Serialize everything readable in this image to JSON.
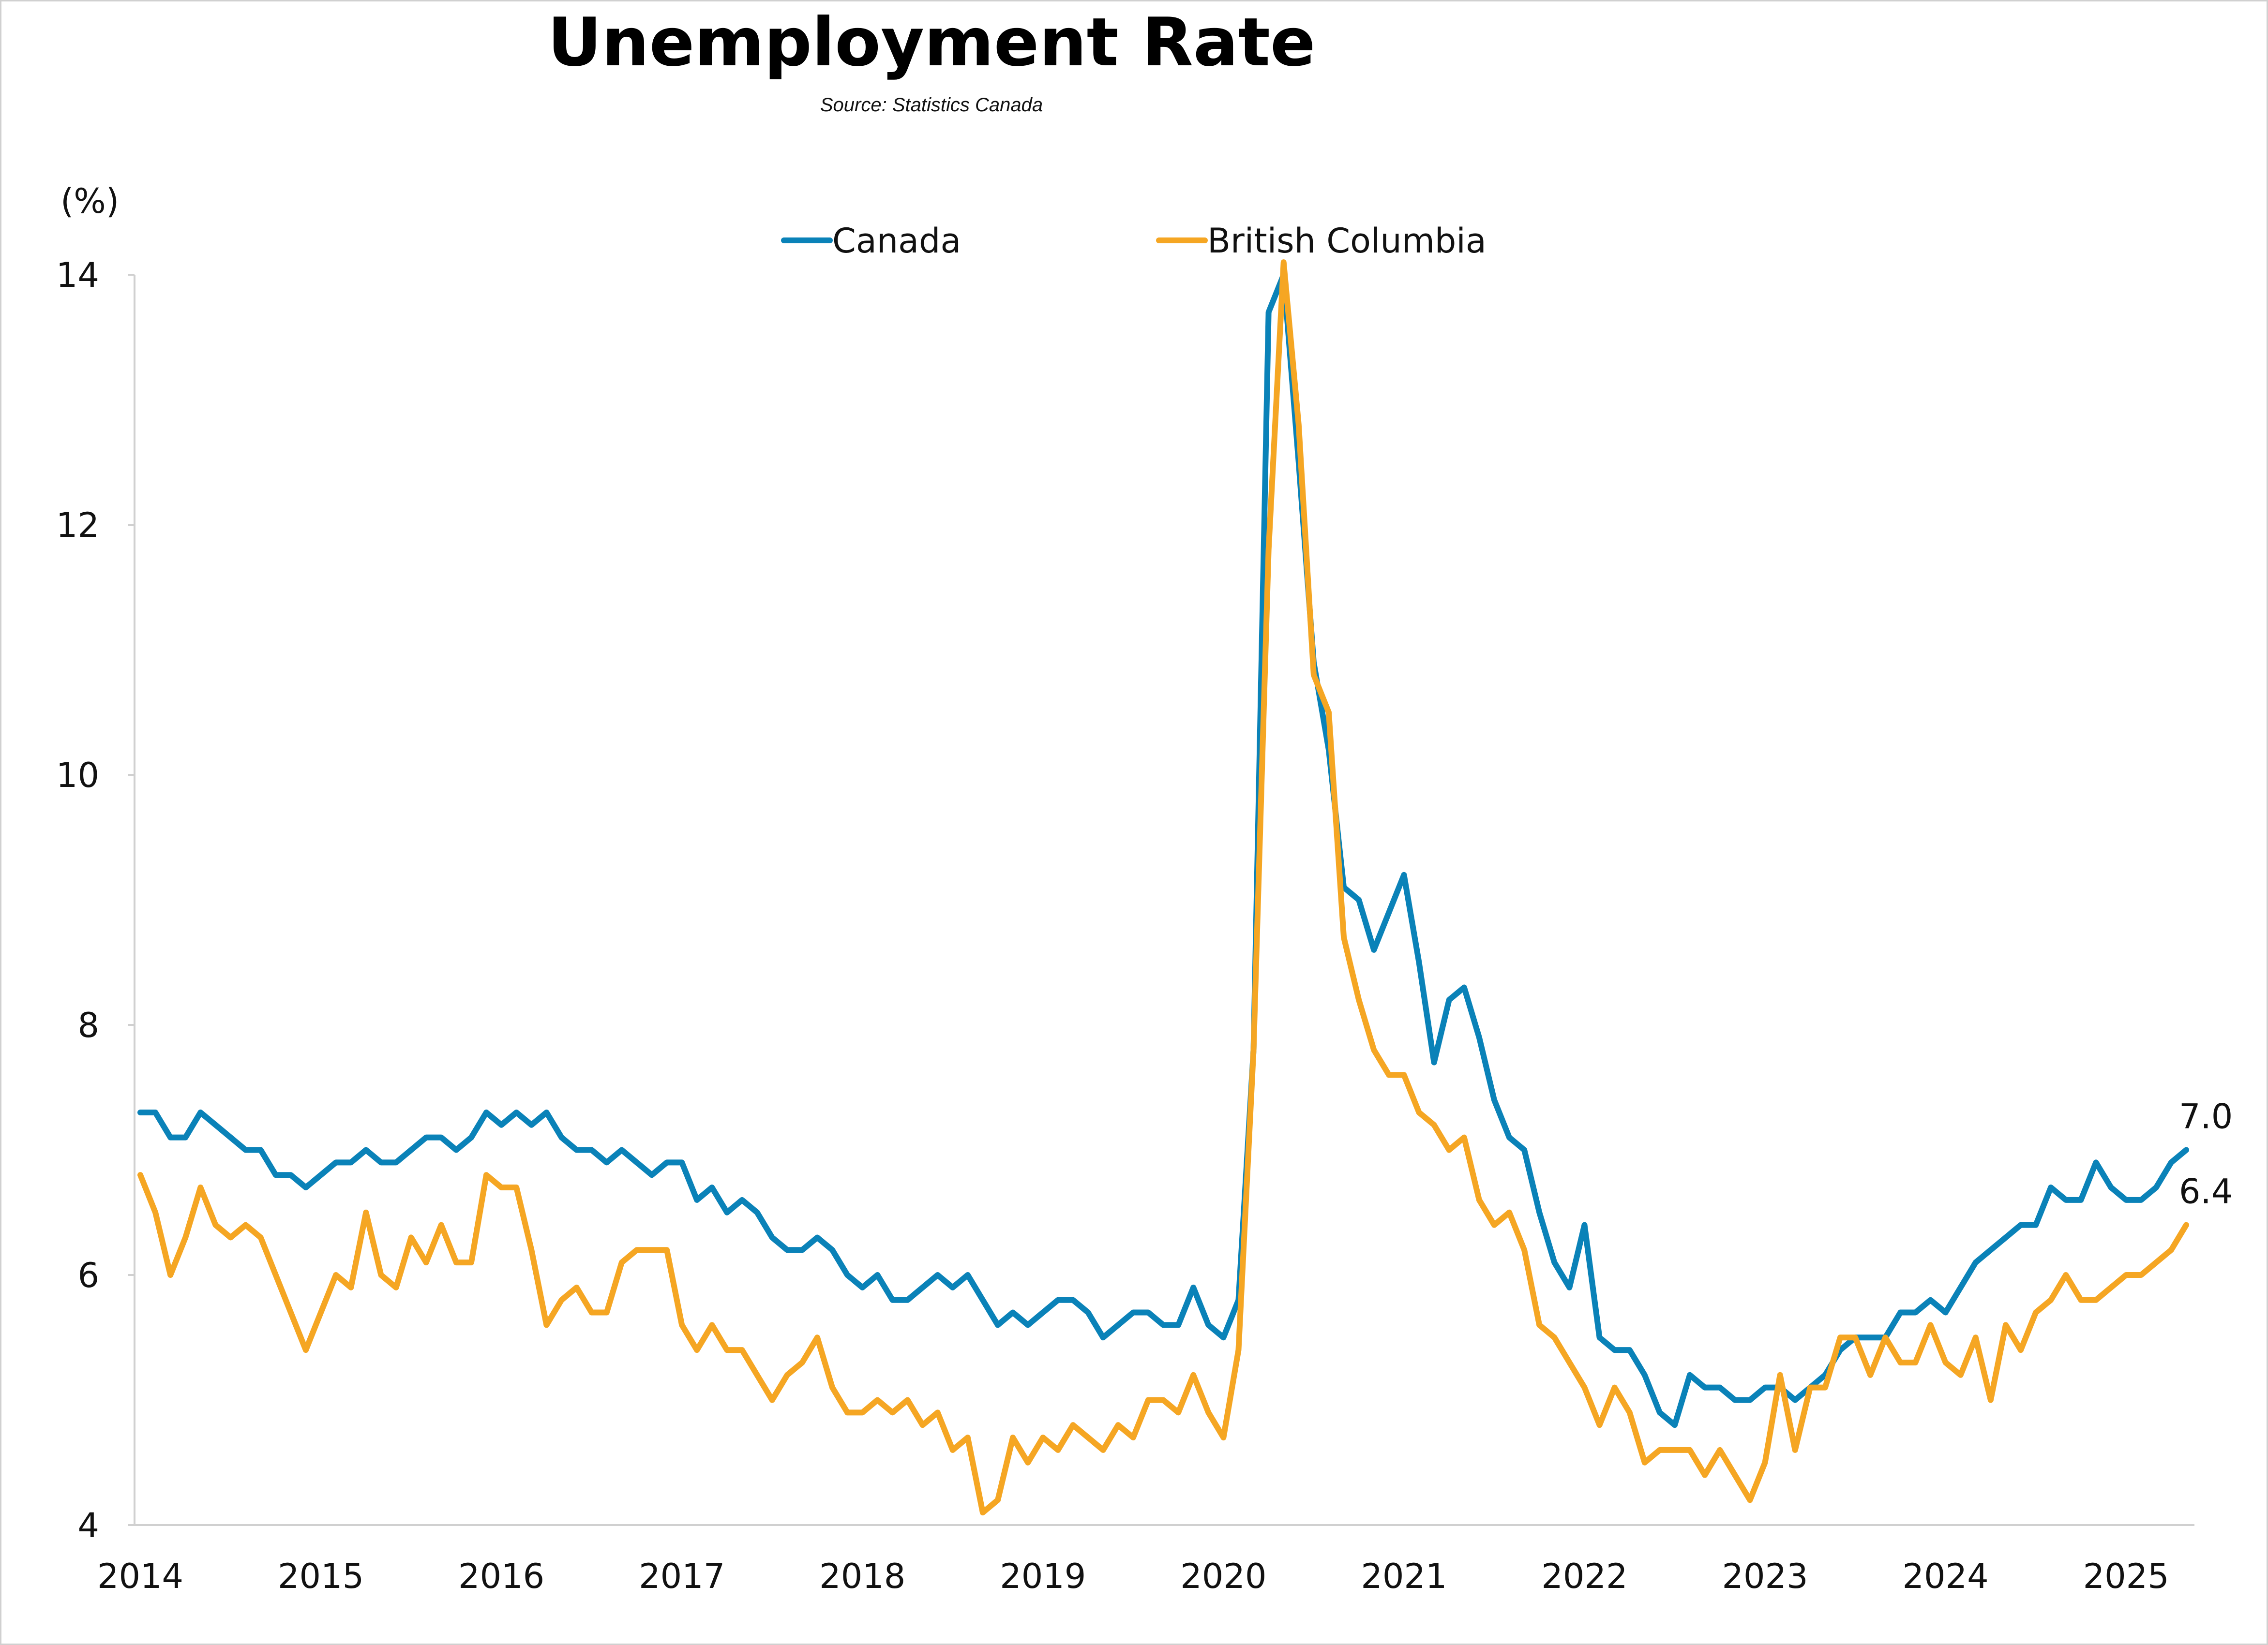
{
  "chart_data": {
    "type": "line",
    "title": "Unemployment Rate",
    "subtitle": "Source: Statistics Canada",
    "ylabel": "(%)",
    "xlabel": "",
    "ylim": [
      4,
      14
    ],
    "xlim": [
      "2014-01",
      "2025-05"
    ],
    "yticks": [
      "4",
      "6",
      "8",
      "10",
      "12",
      "14"
    ],
    "xticks": [
      "2014",
      "2015",
      "2016",
      "2017",
      "2018",
      "2019",
      "2020",
      "2021",
      "2022",
      "2023",
      "2024",
      "2025"
    ],
    "legend_position": "top-center",
    "grid": false,
    "x": [
      "2014-01",
      "2014-02",
      "2014-03",
      "2014-04",
      "2014-05",
      "2014-06",
      "2014-07",
      "2014-08",
      "2014-09",
      "2014-10",
      "2014-11",
      "2014-12",
      "2015-01",
      "2015-02",
      "2015-03",
      "2015-04",
      "2015-05",
      "2015-06",
      "2015-07",
      "2015-08",
      "2015-09",
      "2015-10",
      "2015-11",
      "2015-12",
      "2016-01",
      "2016-02",
      "2016-03",
      "2016-04",
      "2016-05",
      "2016-06",
      "2016-07",
      "2016-08",
      "2016-09",
      "2016-10",
      "2016-11",
      "2016-12",
      "2017-01",
      "2017-02",
      "2017-03",
      "2017-04",
      "2017-05",
      "2017-06",
      "2017-07",
      "2017-08",
      "2017-09",
      "2017-10",
      "2017-11",
      "2017-12",
      "2018-01",
      "2018-02",
      "2018-03",
      "2018-04",
      "2018-05",
      "2018-06",
      "2018-07",
      "2018-08",
      "2018-09",
      "2018-10",
      "2018-11",
      "2018-12",
      "2019-01",
      "2019-02",
      "2019-03",
      "2019-04",
      "2019-05",
      "2019-06",
      "2019-07",
      "2019-08",
      "2019-09",
      "2019-10",
      "2019-11",
      "2019-12",
      "2020-01",
      "2020-02",
      "2020-03",
      "2020-04",
      "2020-05",
      "2020-06",
      "2020-07",
      "2020-08",
      "2020-09",
      "2020-10",
      "2020-11",
      "2020-12",
      "2021-01",
      "2021-02",
      "2021-03",
      "2021-04",
      "2021-05",
      "2021-06",
      "2021-07",
      "2021-08",
      "2021-09",
      "2021-10",
      "2021-11",
      "2021-12",
      "2022-01",
      "2022-02",
      "2022-03",
      "2022-04",
      "2022-05",
      "2022-06",
      "2022-07",
      "2022-08",
      "2022-09",
      "2022-10",
      "2022-11",
      "2022-12",
      "2023-01",
      "2023-02",
      "2023-03",
      "2023-04",
      "2023-05",
      "2023-06",
      "2023-07",
      "2023-08",
      "2023-09",
      "2023-10",
      "2023-11",
      "2023-12",
      "2024-01",
      "2024-02",
      "2024-03",
      "2024-04",
      "2024-05",
      "2024-06",
      "2024-07",
      "2024-08",
      "2024-09",
      "2024-10",
      "2024-11",
      "2024-12",
      "2025-01",
      "2025-02",
      "2025-03",
      "2025-04",
      "2025-05"
    ],
    "series": [
      {
        "name": "Canada",
        "color": "#0a82b8",
        "end_label": "7.0",
        "values": [
          7.3,
          7.3,
          7.1,
          7.1,
          7.3,
          7.2,
          7.1,
          7.0,
          7.0,
          6.8,
          6.8,
          6.7,
          6.8,
          6.9,
          6.9,
          7.0,
          6.9,
          6.9,
          7.0,
          7.1,
          7.1,
          7.0,
          7.1,
          7.3,
          7.2,
          7.3,
          7.2,
          7.3,
          7.1,
          7.0,
          7.0,
          6.9,
          7.0,
          6.9,
          6.8,
          6.9,
          6.9,
          6.6,
          6.7,
          6.5,
          6.6,
          6.5,
          6.3,
          6.2,
          6.2,
          6.3,
          6.2,
          6.0,
          5.9,
          6.0,
          5.8,
          5.8,
          5.9,
          6.0,
          5.9,
          6.0,
          5.8,
          5.6,
          5.7,
          5.6,
          5.7,
          5.8,
          5.8,
          5.7,
          5.5,
          5.6,
          5.7,
          5.7,
          5.6,
          5.6,
          5.9,
          5.6,
          5.5,
          5.8,
          7.8,
          13.7,
          14.0,
          12.5,
          10.9,
          10.2,
          9.1,
          9.0,
          8.6,
          8.9,
          9.2,
          8.5,
          7.7,
          8.2,
          8.3,
          7.9,
          7.4,
          7.1,
          7.0,
          6.5,
          6.1,
          5.9,
          6.4,
          5.5,
          5.4,
          5.4,
          5.2,
          4.9,
          4.8,
          5.2,
          5.1,
          5.1,
          5.0,
          5.0,
          5.1,
          5.1,
          5.0,
          5.1,
          5.2,
          5.4,
          5.5,
          5.5,
          5.5,
          5.7,
          5.7,
          5.8,
          5.7,
          5.9,
          6.1,
          6.2,
          6.3,
          6.4,
          6.4,
          6.7,
          6.6,
          6.6,
          6.9,
          6.7,
          6.6,
          6.6,
          6.7,
          6.9,
          7.0
        ]
      },
      {
        "name": "British Columbia",
        "color": "#f5a623",
        "end_label": "6.4",
        "values": [
          6.8,
          6.5,
          6.0,
          6.3,
          6.7,
          6.4,
          6.3,
          6.4,
          6.3,
          6.0,
          5.7,
          5.4,
          5.7,
          6.0,
          5.9,
          6.5,
          6.0,
          5.9,
          6.3,
          6.1,
          6.4,
          6.1,
          6.1,
          6.8,
          6.7,
          6.7,
          6.2,
          5.6,
          5.8,
          5.9,
          5.7,
          5.7,
          6.1,
          6.2,
          6.2,
          6.2,
          5.6,
          5.4,
          5.6,
          5.4,
          5.4,
          5.2,
          5.0,
          5.2,
          5.3,
          5.5,
          5.1,
          4.9,
          4.9,
          5.0,
          4.9,
          5.0,
          4.8,
          4.9,
          4.6,
          4.7,
          4.1,
          4.2,
          4.7,
          4.5,
          4.7,
          4.6,
          4.8,
          4.7,
          4.6,
          4.8,
          4.7,
          5.0,
          5.0,
          4.9,
          5.2,
          4.9,
          4.7,
          5.4,
          7.8,
          11.8,
          14.1,
          12.8,
          10.8,
          10.5,
          8.7,
          8.2,
          7.8,
          7.6,
          7.6,
          7.3,
          7.2,
          7.0,
          7.1,
          6.6,
          6.4,
          6.5,
          6.2,
          5.6,
          5.5,
          5.3,
          5.1,
          4.8,
          5.1,
          4.9,
          4.5,
          4.6,
          4.6,
          4.6,
          4.4,
          4.6,
          4.4,
          4.2,
          4.5,
          5.2,
          4.6,
          5.1,
          5.1,
          5.5,
          5.5,
          5.2,
          5.5,
          5.3,
          5.3,
          5.6,
          5.3,
          5.2,
          5.5,
          5.0,
          5.6,
          5.4,
          5.7,
          5.8,
          6.0,
          5.8,
          5.8,
          5.9,
          6.0,
          6.0,
          6.1,
          6.2,
          6.4
        ]
      }
    ]
  }
}
